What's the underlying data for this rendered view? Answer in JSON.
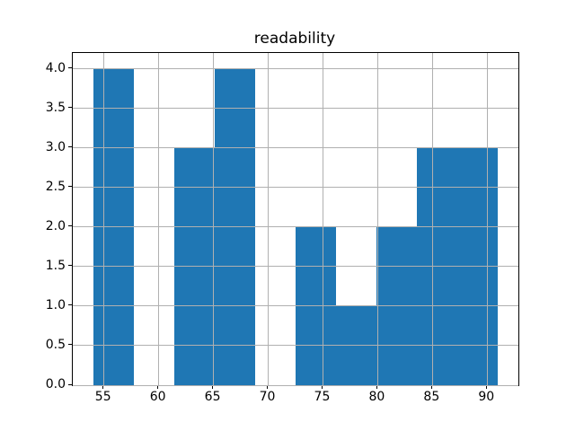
{
  "chart_data": {
    "type": "bar",
    "subtype": "histogram",
    "title": "readability",
    "xlabel": "",
    "ylabel": "",
    "bin_edges": [
      54.0,
      57.7,
      61.4,
      65.1,
      68.8,
      72.5,
      76.2,
      79.9,
      83.6,
      87.3,
      91.0
    ],
    "counts": [
      4,
      0,
      3,
      4,
      0,
      2,
      1,
      2,
      3,
      3
    ],
    "xlim": [
      52.15,
      92.85
    ],
    "ylim": [
      0,
      4.2
    ],
    "xticks": [
      55,
      60,
      65,
      70,
      75,
      80,
      85,
      90
    ],
    "xtick_labels": [
      "55",
      "60",
      "65",
      "70",
      "75",
      "80",
      "85",
      "90"
    ],
    "yticks": [
      0.0,
      0.5,
      1.0,
      1.5,
      2.0,
      2.5,
      3.0,
      3.5,
      4.0
    ],
    "ytick_labels": [
      "0.0",
      "0.5",
      "1.0",
      "1.5",
      "2.0",
      "2.5",
      "3.0",
      "3.5",
      "4.0"
    ],
    "grid": true,
    "legend": null,
    "bar_color": "#1f77b4",
    "grid_color": "#b0b0b0",
    "spine_color": "#000000"
  }
}
